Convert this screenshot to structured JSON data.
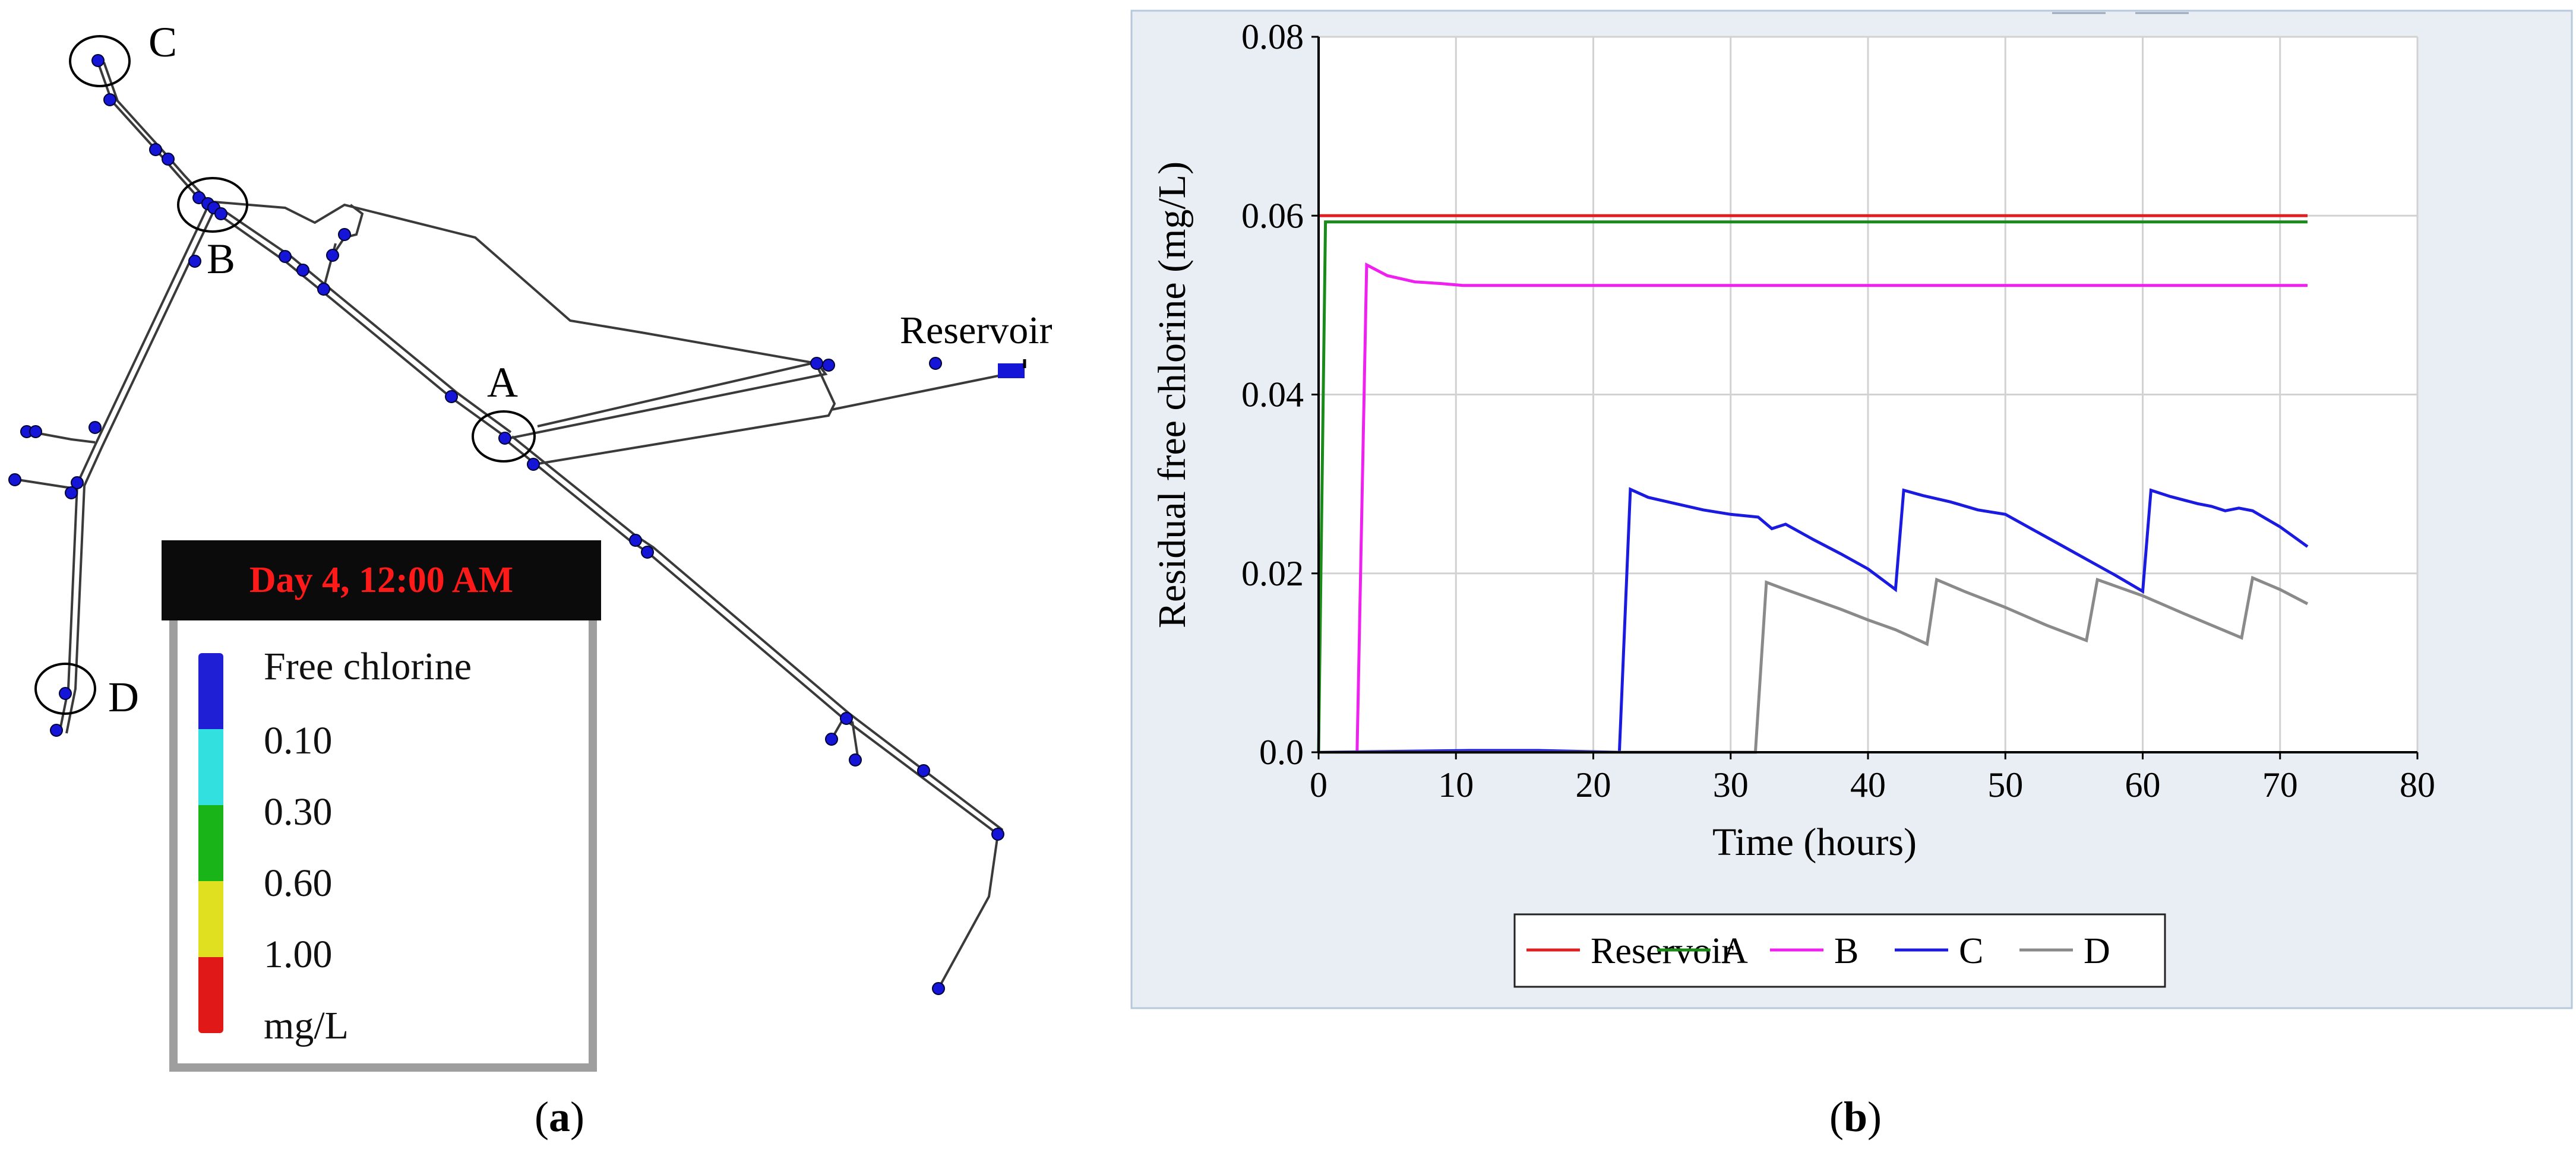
{
  "panel_a": {
    "caption": "(a)",
    "caption_letter": "a",
    "node_labels": {
      "A": "A",
      "B": "B",
      "C": "C",
      "D": "D",
      "reservoir": "Reservoir"
    },
    "legend": {
      "time": "Day 4, 12:00 AM",
      "title": "Free chlorine",
      "levels": [
        "0.10",
        "0.30",
        "0.60",
        "1.00"
      ],
      "unit": "mg/L",
      "colors": [
        "#1f1fd6",
        "#33e0e0",
        "#18b418",
        "#e0e020",
        "#e01818"
      ]
    },
    "node_color": "#1515d8"
  },
  "panel_b": {
    "caption": "(b)",
    "caption_letter": "b",
    "background": "#e9eef4"
  },
  "chart_data": {
    "type": "line",
    "title": "",
    "xlabel": "Time (hours)",
    "ylabel": "Residual free chlorine  (mg/L)",
    "xlim": [
      0,
      80
    ],
    "ylim": [
      0,
      0.08
    ],
    "xticks": [
      "0",
      "10",
      "20",
      "30",
      "40",
      "50",
      "60",
      "70",
      "80"
    ],
    "yticks": [
      "0.0",
      "0.02",
      "0.04",
      "0.06",
      "0.08"
    ],
    "grid": true,
    "legend_position": "bottom",
    "series": [
      {
        "name": "Reservoir",
        "color": "#e02020",
        "x": [
          0,
          0.5,
          72
        ],
        "y": [
          0.06,
          0.06,
          0.06
        ]
      },
      {
        "name": "A",
        "color": "#1a8a1a",
        "x": [
          0,
          0.5,
          72
        ],
        "y": [
          0,
          0.0593,
          0.0593
        ]
      },
      {
        "name": "B",
        "color": "#f020f0",
        "x": [
          0,
          2.8,
          3.5,
          5,
          7,
          9,
          10.5,
          72
        ],
        "y": [
          0,
          0,
          0.0545,
          0.0533,
          0.0526,
          0.0524,
          0.0522,
          0.0522
        ]
      },
      {
        "name": "C",
        "color": "#1a1ae0",
        "x": [
          0,
          11,
          16,
          21.9,
          22.7,
          24,
          26,
          28,
          30,
          32,
          33,
          34,
          36,
          38,
          40,
          42,
          42.6,
          44,
          46,
          48,
          50,
          52,
          54,
          56,
          58,
          60,
          60.6,
          62,
          64,
          65,
          66,
          67,
          68,
          70,
          72
        ],
        "y": [
          0,
          0.0002,
          0.0002,
          0,
          0.0294,
          0.0285,
          0.0278,
          0.0271,
          0.0266,
          0.0263,
          0.025,
          0.0255,
          0.0238,
          0.0222,
          0.0205,
          0.0182,
          0.0293,
          0.0287,
          0.028,
          0.0271,
          0.0266,
          0.0249,
          0.0232,
          0.0215,
          0.0198,
          0.018,
          0.0293,
          0.0286,
          0.0278,
          0.0275,
          0.027,
          0.0273,
          0.027,
          0.0252,
          0.023
        ]
      },
      {
        "name": "D",
        "color": "#8a8a8a",
        "x": [
          0,
          31.8,
          32.6,
          34,
          36,
          38,
          40,
          42,
          44.3,
          45,
          47,
          50,
          53,
          55.9,
          56.7,
          60,
          63,
          67.2,
          68,
          70,
          72
        ],
        "y": [
          0,
          0,
          0.019,
          0.0182,
          0.0171,
          0.016,
          0.0148,
          0.0137,
          0.0121,
          0.0193,
          0.018,
          0.0162,
          0.0142,
          0.0125,
          0.0193,
          0.0175,
          0.0155,
          0.0128,
          0.0195,
          0.0182,
          0.0166
        ]
      }
    ]
  }
}
